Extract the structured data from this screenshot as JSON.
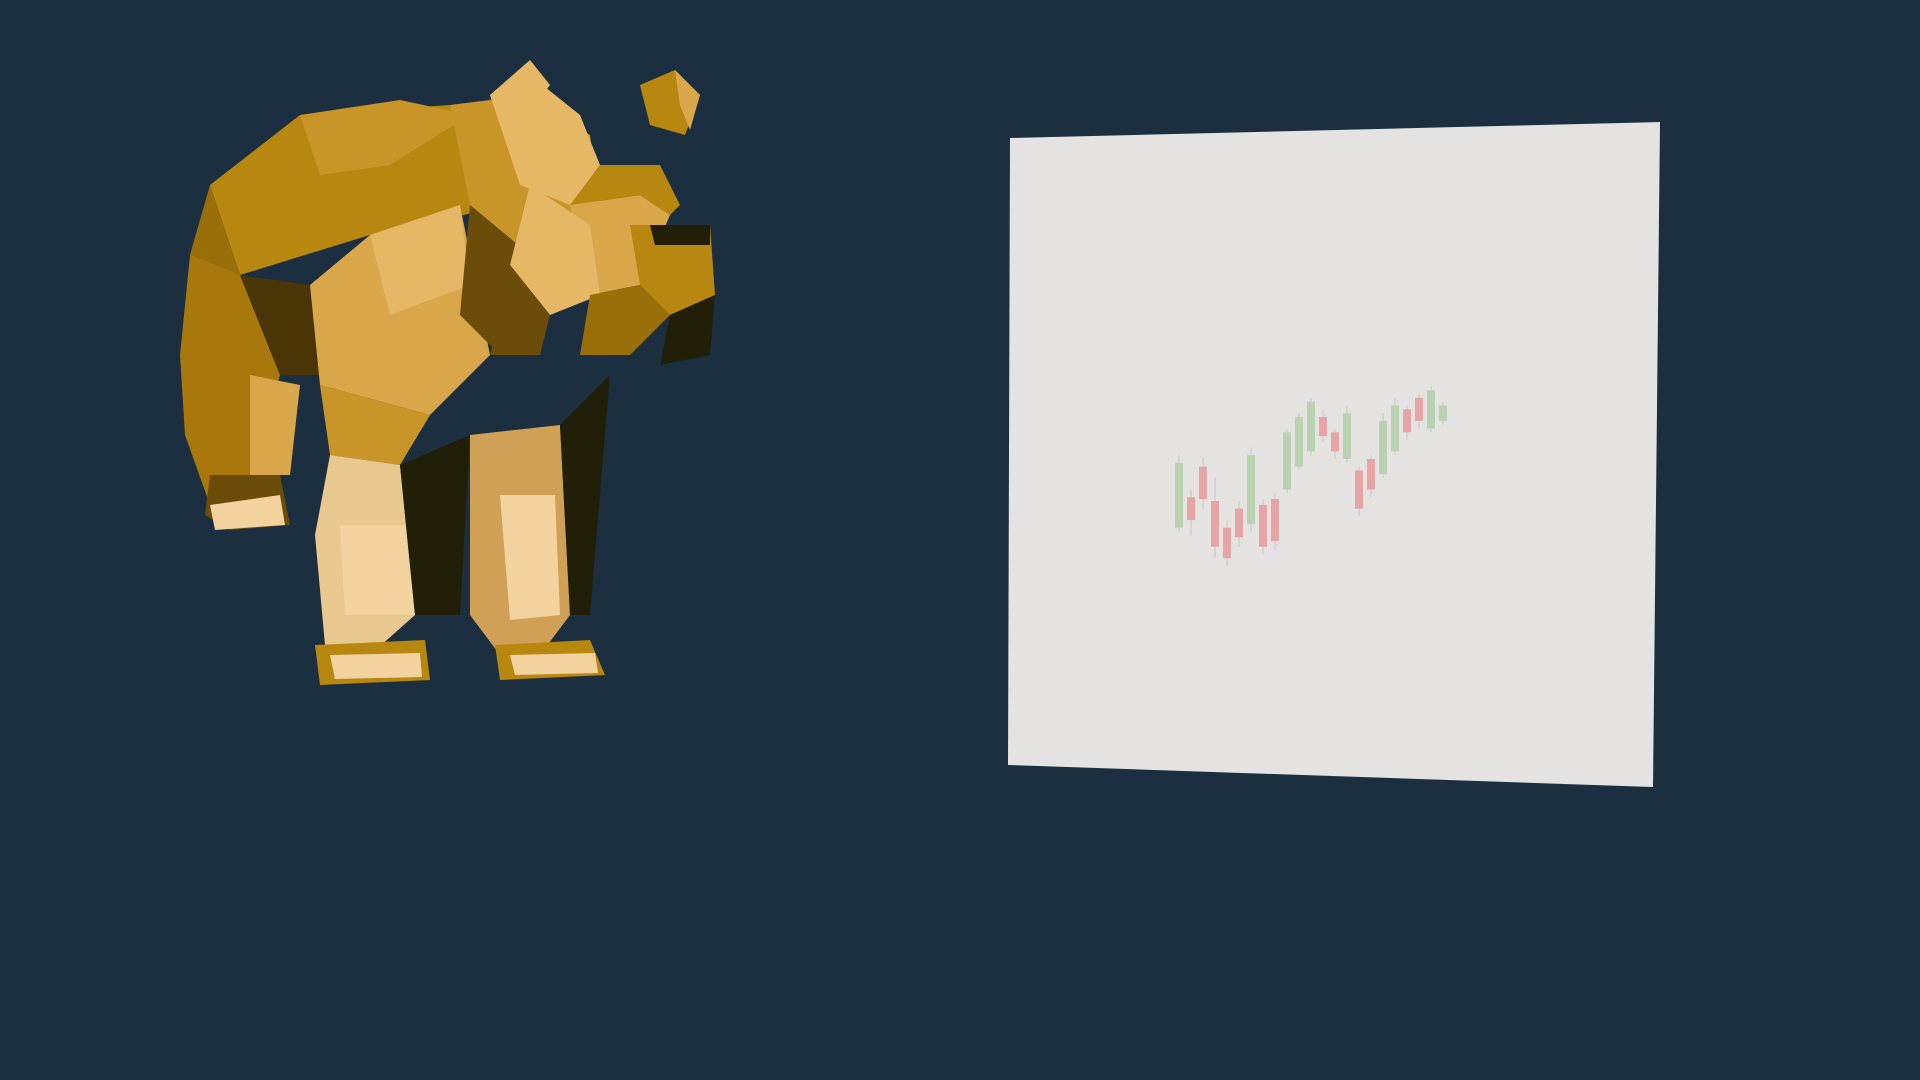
{
  "scene": {
    "background": "#1b2f40",
    "subject": "low-poly-bear",
    "bear_palette": [
      "#b8870f",
      "#d9a74a",
      "#f2d3a0",
      "#6b4c08",
      "#221f08"
    ],
    "board_color": "#e4e3e1",
    "up_color": "#b9d3b0",
    "down_color": "#e7a4a5",
    "wick_color": "#cfcfcf"
  },
  "chart_data": {
    "type": "candlestick",
    "title": "",
    "xlabel": "",
    "ylabel": "",
    "ylim": [
      0,
      100
    ],
    "candles": [
      {
        "o": 30,
        "h": 68,
        "l": 28,
        "c": 64
      },
      {
        "o": 46,
        "h": 50,
        "l": 26,
        "c": 34
      },
      {
        "o": 62,
        "h": 67,
        "l": 40,
        "c": 45
      },
      {
        "o": 44,
        "h": 56,
        "l": 14,
        "c": 20
      },
      {
        "o": 30,
        "h": 34,
        "l": 10,
        "c": 14
      },
      {
        "o": 40,
        "h": 44,
        "l": 20,
        "c": 25
      },
      {
        "o": 32,
        "h": 72,
        "l": 28,
        "c": 68
      },
      {
        "o": 42,
        "h": 45,
        "l": 16,
        "c": 20
      },
      {
        "o": 45,
        "h": 48,
        "l": 18,
        "c": 23
      },
      {
        "o": 50,
        "h": 82,
        "l": 48,
        "c": 80
      },
      {
        "o": 62,
        "h": 90,
        "l": 60,
        "c": 88
      },
      {
        "o": 70,
        "h": 98,
        "l": 68,
        "c": 96
      },
      {
        "o": 88,
        "h": 92,
        "l": 75,
        "c": 78
      },
      {
        "o": 80,
        "h": 82,
        "l": 66,
        "c": 70
      },
      {
        "o": 66,
        "h": 94,
        "l": 64,
        "c": 90
      },
      {
        "o": 60,
        "h": 62,
        "l": 36,
        "c": 40
      },
      {
        "o": 66,
        "h": 68,
        "l": 46,
        "c": 50
      },
      {
        "o": 58,
        "h": 90,
        "l": 56,
        "c": 86
      },
      {
        "o": 70,
        "h": 98,
        "l": 68,
        "c": 94
      },
      {
        "o": 92,
        "h": 94,
        "l": 76,
        "c": 80
      },
      {
        "o": 98,
        "h": 100,
        "l": 82,
        "c": 86
      },
      {
        "o": 82,
        "h": 104,
        "l": 80,
        "c": 102
      },
      {
        "o": 86,
        "h": 96,
        "l": 84,
        "c": 94
      }
    ]
  }
}
